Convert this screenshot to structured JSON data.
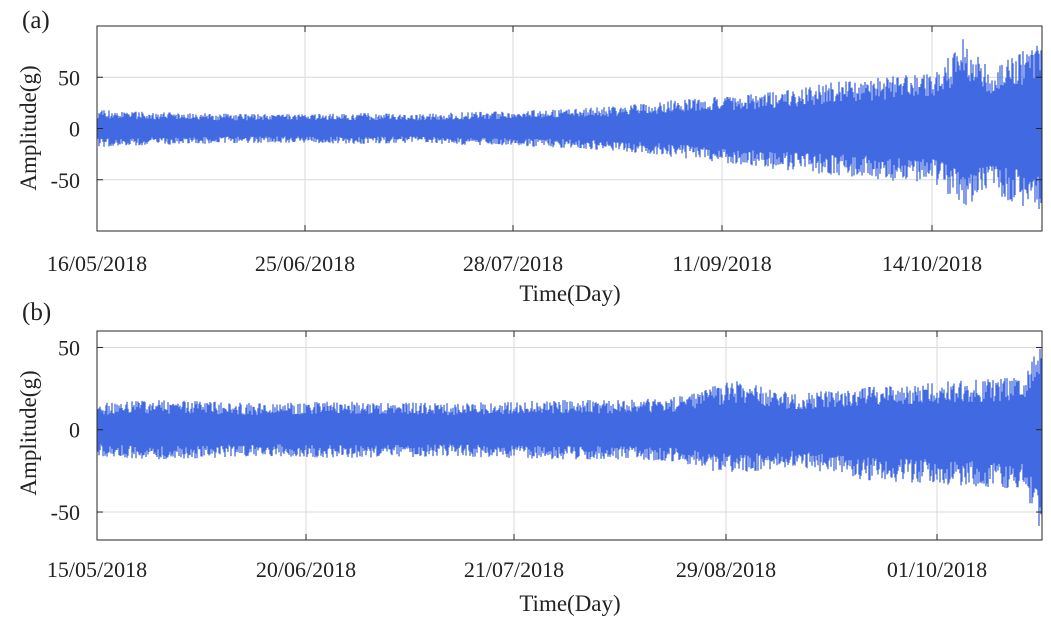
{
  "chart_data": [
    {
      "type": "line",
      "panel_label": "(a)",
      "xlabel": "Time(Day)",
      "ylabel": "Amplitude(g)",
      "x_tick_labels": [
        "16/05/2018",
        "25/06/2018",
        "28/07/2018",
        "11/09/2018",
        "14/10/2018"
      ],
      "x_range": [
        "16/05/2018",
        "11/11/2018"
      ],
      "ylim": [
        -100,
        100
      ],
      "yticks": [
        -50,
        0,
        50
      ],
      "grid": true,
      "series_color": "#4169E1",
      "envelope": {
        "x_day": [
          0,
          10,
          20,
          30,
          40,
          50,
          60,
          70,
          80,
          90,
          100,
          110,
          120,
          130,
          140,
          150,
          160,
          165,
          170,
          175,
          180
        ],
        "upper": [
          18,
          16,
          15,
          14,
          14,
          15,
          14,
          16,
          17,
          19,
          22,
          28,
          32,
          36,
          45,
          50,
          55,
          88,
          60,
          70,
          90
        ],
        "lower": [
          -18,
          -16,
          -15,
          -14,
          -14,
          -15,
          -14,
          -16,
          -17,
          -19,
          -22,
          -28,
          -34,
          -40,
          -45,
          -50,
          -55,
          -76,
          -65,
          -72,
          -85
        ]
      }
    },
    {
      "type": "line",
      "panel_label": "(b)",
      "xlabel": "Time(Day)",
      "ylabel": "Amplitude(g)",
      "x_tick_labels": [
        "15/05/2018",
        "20/06/2018",
        "21/07/2018",
        "29/08/2018",
        "01/10/2018"
      ],
      "x_range": [
        "15/05/2018",
        "25/10/2018"
      ],
      "ylim": [
        -67,
        60
      ],
      "yticks": [
        -50,
        0,
        50
      ],
      "grid": true,
      "series_color": "#4169E1",
      "envelope": {
        "x_day": [
          0,
          10,
          20,
          30,
          40,
          50,
          60,
          70,
          80,
          90,
          100,
          110,
          120,
          130,
          140,
          150,
          160,
          163
        ],
        "upper": [
          16,
          18,
          17,
          16,
          17,
          17,
          16,
          17,
          18,
          18,
          20,
          30,
          22,
          25,
          28,
          30,
          32,
          58
        ],
        "lower": [
          -16,
          -18,
          -17,
          -16,
          -17,
          -17,
          -16,
          -17,
          -18,
          -18,
          -20,
          -28,
          -22,
          -30,
          -32,
          -34,
          -36,
          -66
        ]
      }
    }
  ]
}
